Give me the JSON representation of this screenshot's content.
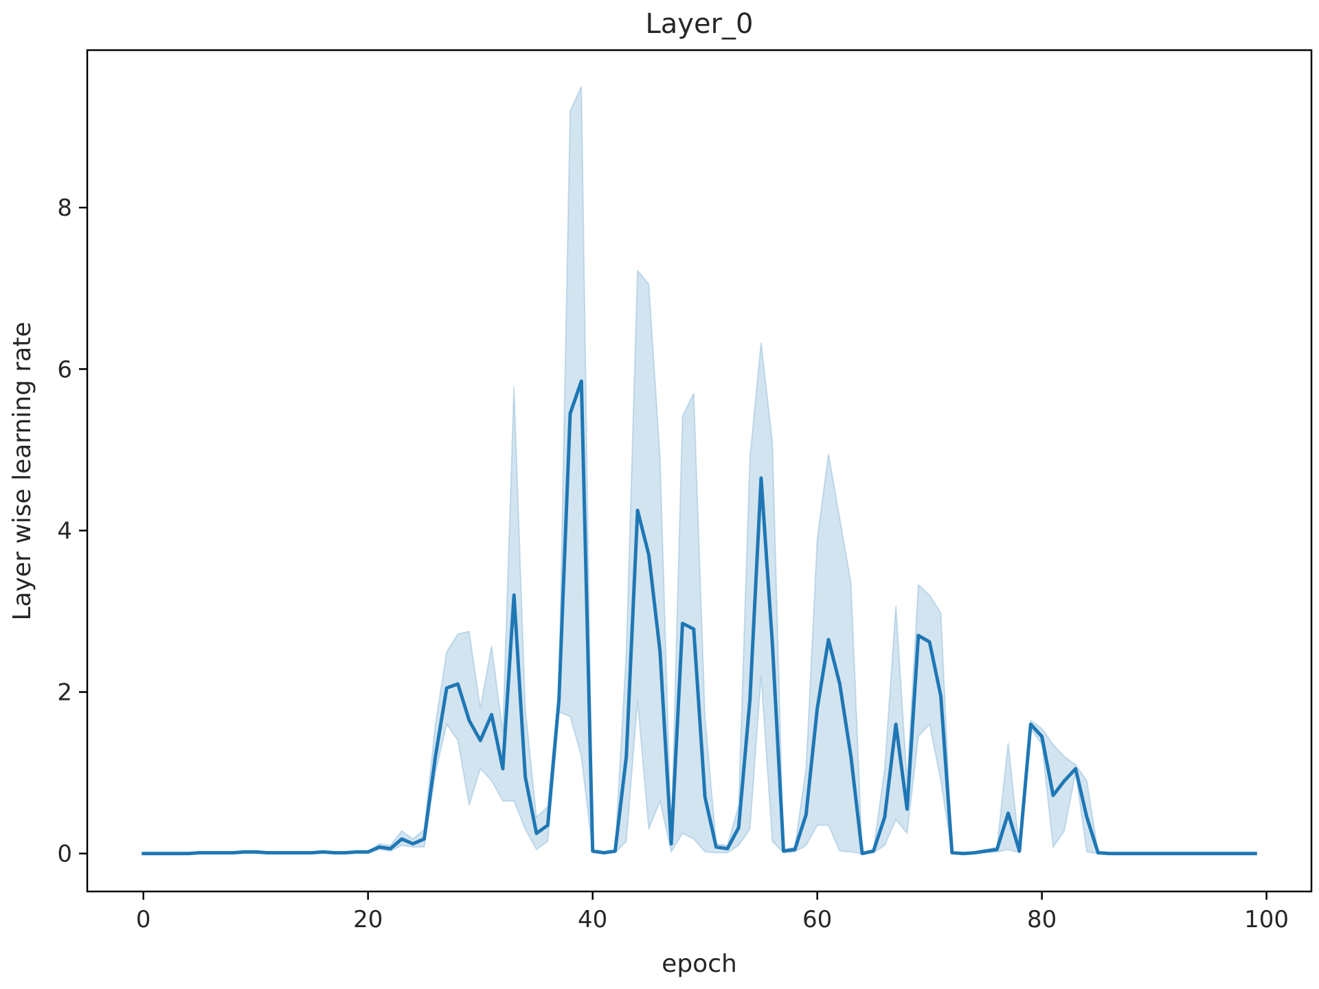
{
  "chart_data": {
    "type": "line",
    "title": "Layer_0",
    "xlabel": "epoch",
    "ylabel": "Layer wise learning rate",
    "xlim": [
      -5,
      104
    ],
    "ylim": [
      -0.47,
      9.95
    ],
    "xticks": [
      0,
      20,
      40,
      60,
      80,
      100
    ],
    "yticks": [
      0,
      2,
      4,
      6,
      8
    ],
    "grid": false,
    "legend": "none",
    "line_color": "#1f77b4",
    "band_color": "#1f77b4",
    "series": [
      {
        "x": [
          0,
          1,
          2,
          3,
          4,
          5,
          6,
          7,
          8,
          9,
          10,
          11,
          12,
          13,
          14,
          15,
          16,
          17,
          18,
          19,
          20,
          21,
          22,
          23,
          24,
          25,
          26,
          27,
          28,
          29,
          30,
          31,
          32,
          33,
          34,
          35,
          36,
          37,
          38,
          39,
          40,
          41,
          42,
          43,
          44,
          45,
          46,
          47,
          48,
          49,
          50,
          51,
          52,
          53,
          54,
          55,
          56,
          57,
          58,
          59,
          60,
          61,
          62,
          63,
          64,
          65,
          66,
          67,
          68,
          69,
          70,
          71,
          72,
          73,
          74,
          75,
          76,
          77,
          78,
          79,
          80,
          81,
          82,
          83,
          84,
          85,
          86,
          87,
          88,
          89,
          90,
          91,
          92,
          93,
          94,
          95,
          96,
          97,
          98,
          99
        ],
        "values": [
          0,
          0,
          0,
          0,
          0,
          0.01,
          0.01,
          0.01,
          0.01,
          0.02,
          0.02,
          0.01,
          0.01,
          0.01,
          0.01,
          0.01,
          0.02,
          0.01,
          0.01,
          0.02,
          0.02,
          0.08,
          0.06,
          0.18,
          0.12,
          0.18,
          1.2,
          2.05,
          2.1,
          1.65,
          1.4,
          1.72,
          1.05,
          3.2,
          0.95,
          0.25,
          0.35,
          1.9,
          5.45,
          5.85,
          0.03,
          0.01,
          0.03,
          1.2,
          4.25,
          3.7,
          2.5,
          0.12,
          2.85,
          2.78,
          0.7,
          0.08,
          0.06,
          0.32,
          1.9,
          4.65,
          2.6,
          0.03,
          0.05,
          0.48,
          1.8,
          2.65,
          2.1,
          1.2,
          0.0,
          0.03,
          0.45,
          1.6,
          0.55,
          2.7,
          2.62,
          1.95,
          0.01,
          0.0,
          0.01,
          0.03,
          0.05,
          0.5,
          0.03,
          1.6,
          1.45,
          0.72,
          0.9,
          1.05,
          0.45,
          0.01,
          0.0,
          0,
          0,
          0,
          0,
          0,
          0,
          0,
          0,
          0,
          0,
          0,
          0,
          0
        ],
        "lower": [
          0,
          0,
          0,
          0,
          0,
          0,
          0,
          0,
          0,
          0,
          0,
          0,
          0,
          0,
          0,
          0,
          0,
          0,
          0,
          0,
          0,
          0.05,
          0.03,
          0.1,
          0.08,
          0.08,
          1.0,
          1.6,
          1.4,
          0.6,
          1.05,
          0.9,
          0.65,
          0.65,
          0.3,
          0.05,
          0.15,
          1.75,
          1.7,
          1.2,
          0.01,
          0,
          0.01,
          0.15,
          1.9,
          0.3,
          0.65,
          0.02,
          0.25,
          0.18,
          0.02,
          0.01,
          0.01,
          0.1,
          0.3,
          2.2,
          0.15,
          0.01,
          0.02,
          0.1,
          0.35,
          0.35,
          0.03,
          0.02,
          0,
          0.01,
          0.1,
          0.42,
          0.25,
          1.45,
          1.6,
          0.9,
          0,
          0,
          0,
          0.01,
          0.02,
          0.05,
          0.01,
          1.55,
          1.35,
          0.08,
          0.28,
          1.0,
          0.02,
          0,
          0,
          0,
          0,
          0,
          0,
          0,
          0,
          0,
          0,
          0,
          0,
          0,
          0,
          0
        ],
        "upper": [
          0,
          0,
          0,
          0,
          0,
          0.01,
          0.01,
          0.01,
          0.01,
          0.02,
          0.02,
          0.01,
          0.01,
          0.01,
          0.01,
          0.01,
          0.02,
          0.01,
          0.01,
          0.02,
          0.02,
          0.12,
          0.1,
          0.28,
          0.18,
          0.3,
          1.6,
          2.5,
          2.72,
          2.75,
          1.8,
          2.57,
          1.5,
          5.78,
          1.8,
          0.45,
          0.58,
          2.05,
          9.2,
          9.5,
          0.05,
          0.02,
          0.05,
          2.5,
          7.22,
          7.05,
          4.9,
          0.25,
          5.42,
          5.7,
          1.7,
          0.12,
          0.1,
          0.6,
          4.9,
          6.33,
          5.1,
          0.05,
          0.08,
          1.05,
          3.9,
          4.95,
          4.15,
          3.35,
          0.01,
          0.05,
          1.05,
          3.07,
          0.9,
          3.33,
          3.2,
          2.98,
          0.02,
          0.01,
          0.02,
          0.05,
          0.08,
          1.37,
          0.05,
          1.65,
          1.55,
          1.35,
          1.2,
          1.1,
          0.9,
          0.02,
          0.01,
          0,
          0,
          0,
          0,
          0,
          0,
          0,
          0,
          0,
          0,
          0,
          0,
          0
        ]
      }
    ]
  }
}
